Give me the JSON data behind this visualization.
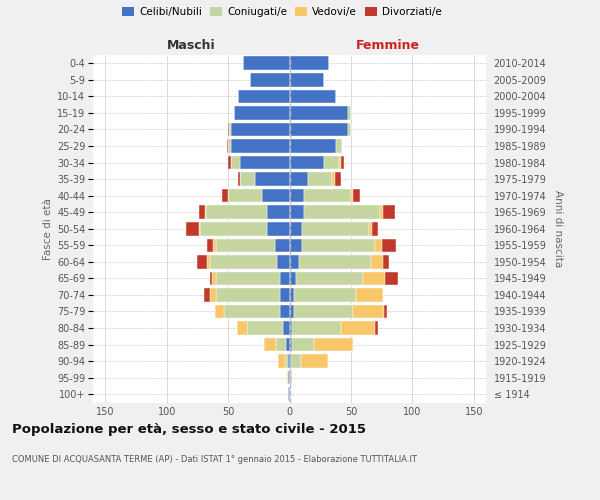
{
  "age_groups": [
    "100+",
    "95-99",
    "90-94",
    "85-89",
    "80-84",
    "75-79",
    "70-74",
    "65-69",
    "60-64",
    "55-59",
    "50-54",
    "45-49",
    "40-44",
    "35-39",
    "30-34",
    "25-29",
    "20-24",
    "15-19",
    "10-14",
    "5-9",
    "0-4"
  ],
  "birth_years": [
    "≤ 1914",
    "1915-1919",
    "1920-1924",
    "1925-1929",
    "1930-1934",
    "1935-1939",
    "1940-1944",
    "1945-1949",
    "1950-1954",
    "1955-1959",
    "1960-1964",
    "1965-1969",
    "1970-1974",
    "1975-1979",
    "1980-1984",
    "1985-1989",
    "1990-1994",
    "1995-1999",
    "2000-2004",
    "2005-2009",
    "2010-2014"
  ],
  "maschi": {
    "celibi": [
      1,
      1,
      1,
      3,
      5,
      8,
      8,
      8,
      10,
      12,
      18,
      18,
      22,
      28,
      40,
      48,
      48,
      45,
      42,
      32,
      38
    ],
    "coniugati": [
      0,
      0,
      3,
      8,
      30,
      45,
      52,
      52,
      55,
      48,
      55,
      50,
      28,
      12,
      8,
      2,
      1,
      0,
      0,
      0,
      0
    ],
    "vedovi": [
      0,
      1,
      5,
      10,
      8,
      8,
      5,
      3,
      2,
      2,
      1,
      1,
      0,
      0,
      0,
      0,
      0,
      0,
      0,
      0,
      0
    ],
    "divorziati": [
      0,
      0,
      0,
      0,
      0,
      0,
      5,
      2,
      8,
      5,
      10,
      5,
      5,
      2,
      2,
      1,
      1,
      0,
      0,
      0,
      0
    ]
  },
  "femmine": {
    "nubili": [
      0,
      0,
      1,
      2,
      2,
      4,
      4,
      5,
      8,
      10,
      10,
      12,
      12,
      15,
      28,
      38,
      48,
      48,
      38,
      28,
      32
    ],
    "coniugate": [
      0,
      0,
      8,
      18,
      40,
      48,
      50,
      55,
      58,
      60,
      55,
      62,
      38,
      20,
      12,
      5,
      2,
      2,
      0,
      0,
      0
    ],
    "vedove": [
      1,
      2,
      22,
      32,
      28,
      25,
      22,
      18,
      10,
      5,
      2,
      2,
      2,
      2,
      2,
      0,
      0,
      0,
      0,
      0,
      0
    ],
    "divorziate": [
      0,
      0,
      0,
      0,
      2,
      2,
      0,
      10,
      5,
      12,
      5,
      10,
      5,
      5,
      2,
      0,
      0,
      0,
      0,
      0,
      0
    ]
  },
  "colors": {
    "celibi": "#4472C4",
    "coniugati": "#C5D5A0",
    "vedovi": "#F9C76A",
    "divorziati": "#C0392B"
  },
  "legend_labels": [
    "Celibi/Nubili",
    "Coniugati/e",
    "Vedovi/e",
    "Divorziati/e"
  ],
  "title": "Popolazione per età, sesso e stato civile - 2015",
  "subtitle": "COMUNE DI ACQUASANTA TERME (AP) - Dati ISTAT 1° gennaio 2015 - Elaborazione TUTTITALIA.IT",
  "label_maschi": "Maschi",
  "label_femmine": "Femmine",
  "ylabel_left": "Fasce di età",
  "ylabel_right": "Anni di nascita",
  "xlim": 160,
  "bg_color": "#f0f0f0",
  "plot_bg_color": "#ffffff"
}
